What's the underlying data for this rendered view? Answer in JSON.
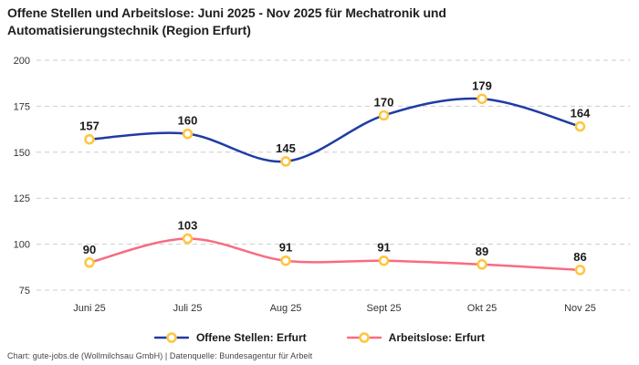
{
  "title": "Offene Stellen und Arbeitslose: Juni 2025 - Nov 2025 für Mechatronik und Automatisierungstechnik (Region Erfurt)",
  "footer": "Chart: gute-jobs.de (Wollmilchsau GmbH) | Datenquelle: Bundesagentur für Arbeit",
  "colors": {
    "grid": "#cccccc",
    "axis_text": "#333333",
    "data_label": "#1a1a1a",
    "marker_fill": "#ffffff",
    "marker_stroke": "#ffc53d",
    "series_blue": "#1f3ca4",
    "series_pink": "#f96b82"
  },
  "chart_data": {
    "type": "line",
    "categories": [
      "Juni 25",
      "Juli 25",
      "Aug 25",
      "Sept 25",
      "Okt 25",
      "Nov 25"
    ],
    "series": [
      {
        "name": "Offene Stellen: Erfurt",
        "values": [
          157,
          160,
          145,
          170,
          179,
          164
        ],
        "color": "#1f3ca4"
      },
      {
        "name": "Arbeitslose: Erfurt",
        "values": [
          90,
          103,
          91,
          91,
          89,
          86
        ],
        "color": "#f96b82"
      }
    ],
    "title": "Offene Stellen und Arbeitslose: Juni 2025 - Nov 2025 für Mechatronik und Automatisierungstechnik (Region Erfurt)",
    "xlabel": "",
    "ylabel": "",
    "ylim": [
      75,
      200
    ],
    "yticks": [
      200,
      175,
      150,
      125,
      100,
      75
    ],
    "grid": true,
    "grid_style": "dashed",
    "legend_position": "bottom",
    "marker": {
      "fill": "#ffffff",
      "stroke": "#ffc53d"
    },
    "data_labels": true
  }
}
